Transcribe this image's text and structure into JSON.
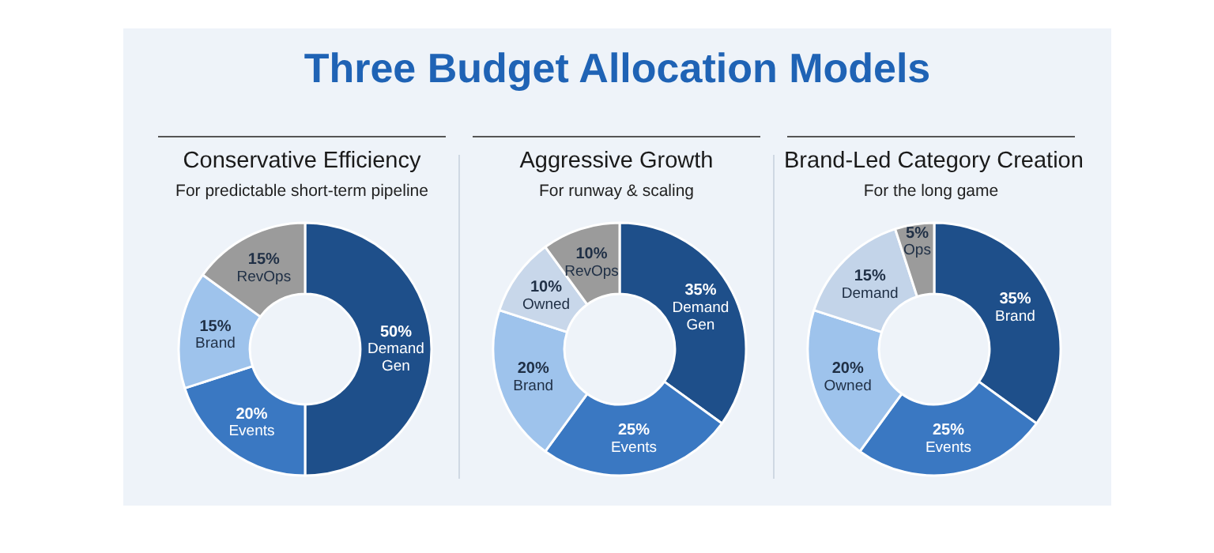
{
  "chart_data": [
    {
      "type": "other",
      "title": "Three Budget Allocation Models"
    },
    {
      "type": "donut",
      "title": "Conservative Efficiency",
      "subtitle": "For predictable short-term pipeline",
      "categories": [
        "Demand Gen",
        "Events",
        "Brand",
        "RevOps"
      ],
      "values": [
        50,
        20,
        15,
        15
      ],
      "value_labels": [
        "50%",
        "20%",
        "15%",
        "15%"
      ],
      "colors": [
        "#1e4f8a",
        "#3a78c2",
        "#9ec3ec",
        "#9b9b9b"
      ],
      "legend": false
    },
    {
      "type": "donut",
      "title": "Aggressive Growth",
      "subtitle": "For runway & scaling",
      "categories": [
        "Demand Gen",
        "Events",
        "Brand",
        "Owned",
        "RevOps"
      ],
      "values": [
        35,
        25,
        20,
        10,
        10
      ],
      "value_labels": [
        "35%",
        "25%",
        "20%",
        "10%",
        "10%"
      ],
      "colors": [
        "#1e4f8a",
        "#3a78c2",
        "#9ec3ec",
        "#c8d7ea",
        "#9b9b9b"
      ],
      "legend": false
    },
    {
      "type": "donut",
      "title": "Brand-Led Category Creation",
      "subtitle": "For the long game",
      "categories": [
        "Brand",
        "Events",
        "Owned",
        "Demand",
        "Ops"
      ],
      "values": [
        35,
        25,
        20,
        15,
        5
      ],
      "value_labels": [
        "35%",
        "25%",
        "20%",
        "15%",
        "5%"
      ],
      "colors": [
        "#1e4f8a",
        "#3a78c2",
        "#9ec3ec",
        "#c3d4e9",
        "#9b9b9b"
      ],
      "legend": false
    }
  ]
}
